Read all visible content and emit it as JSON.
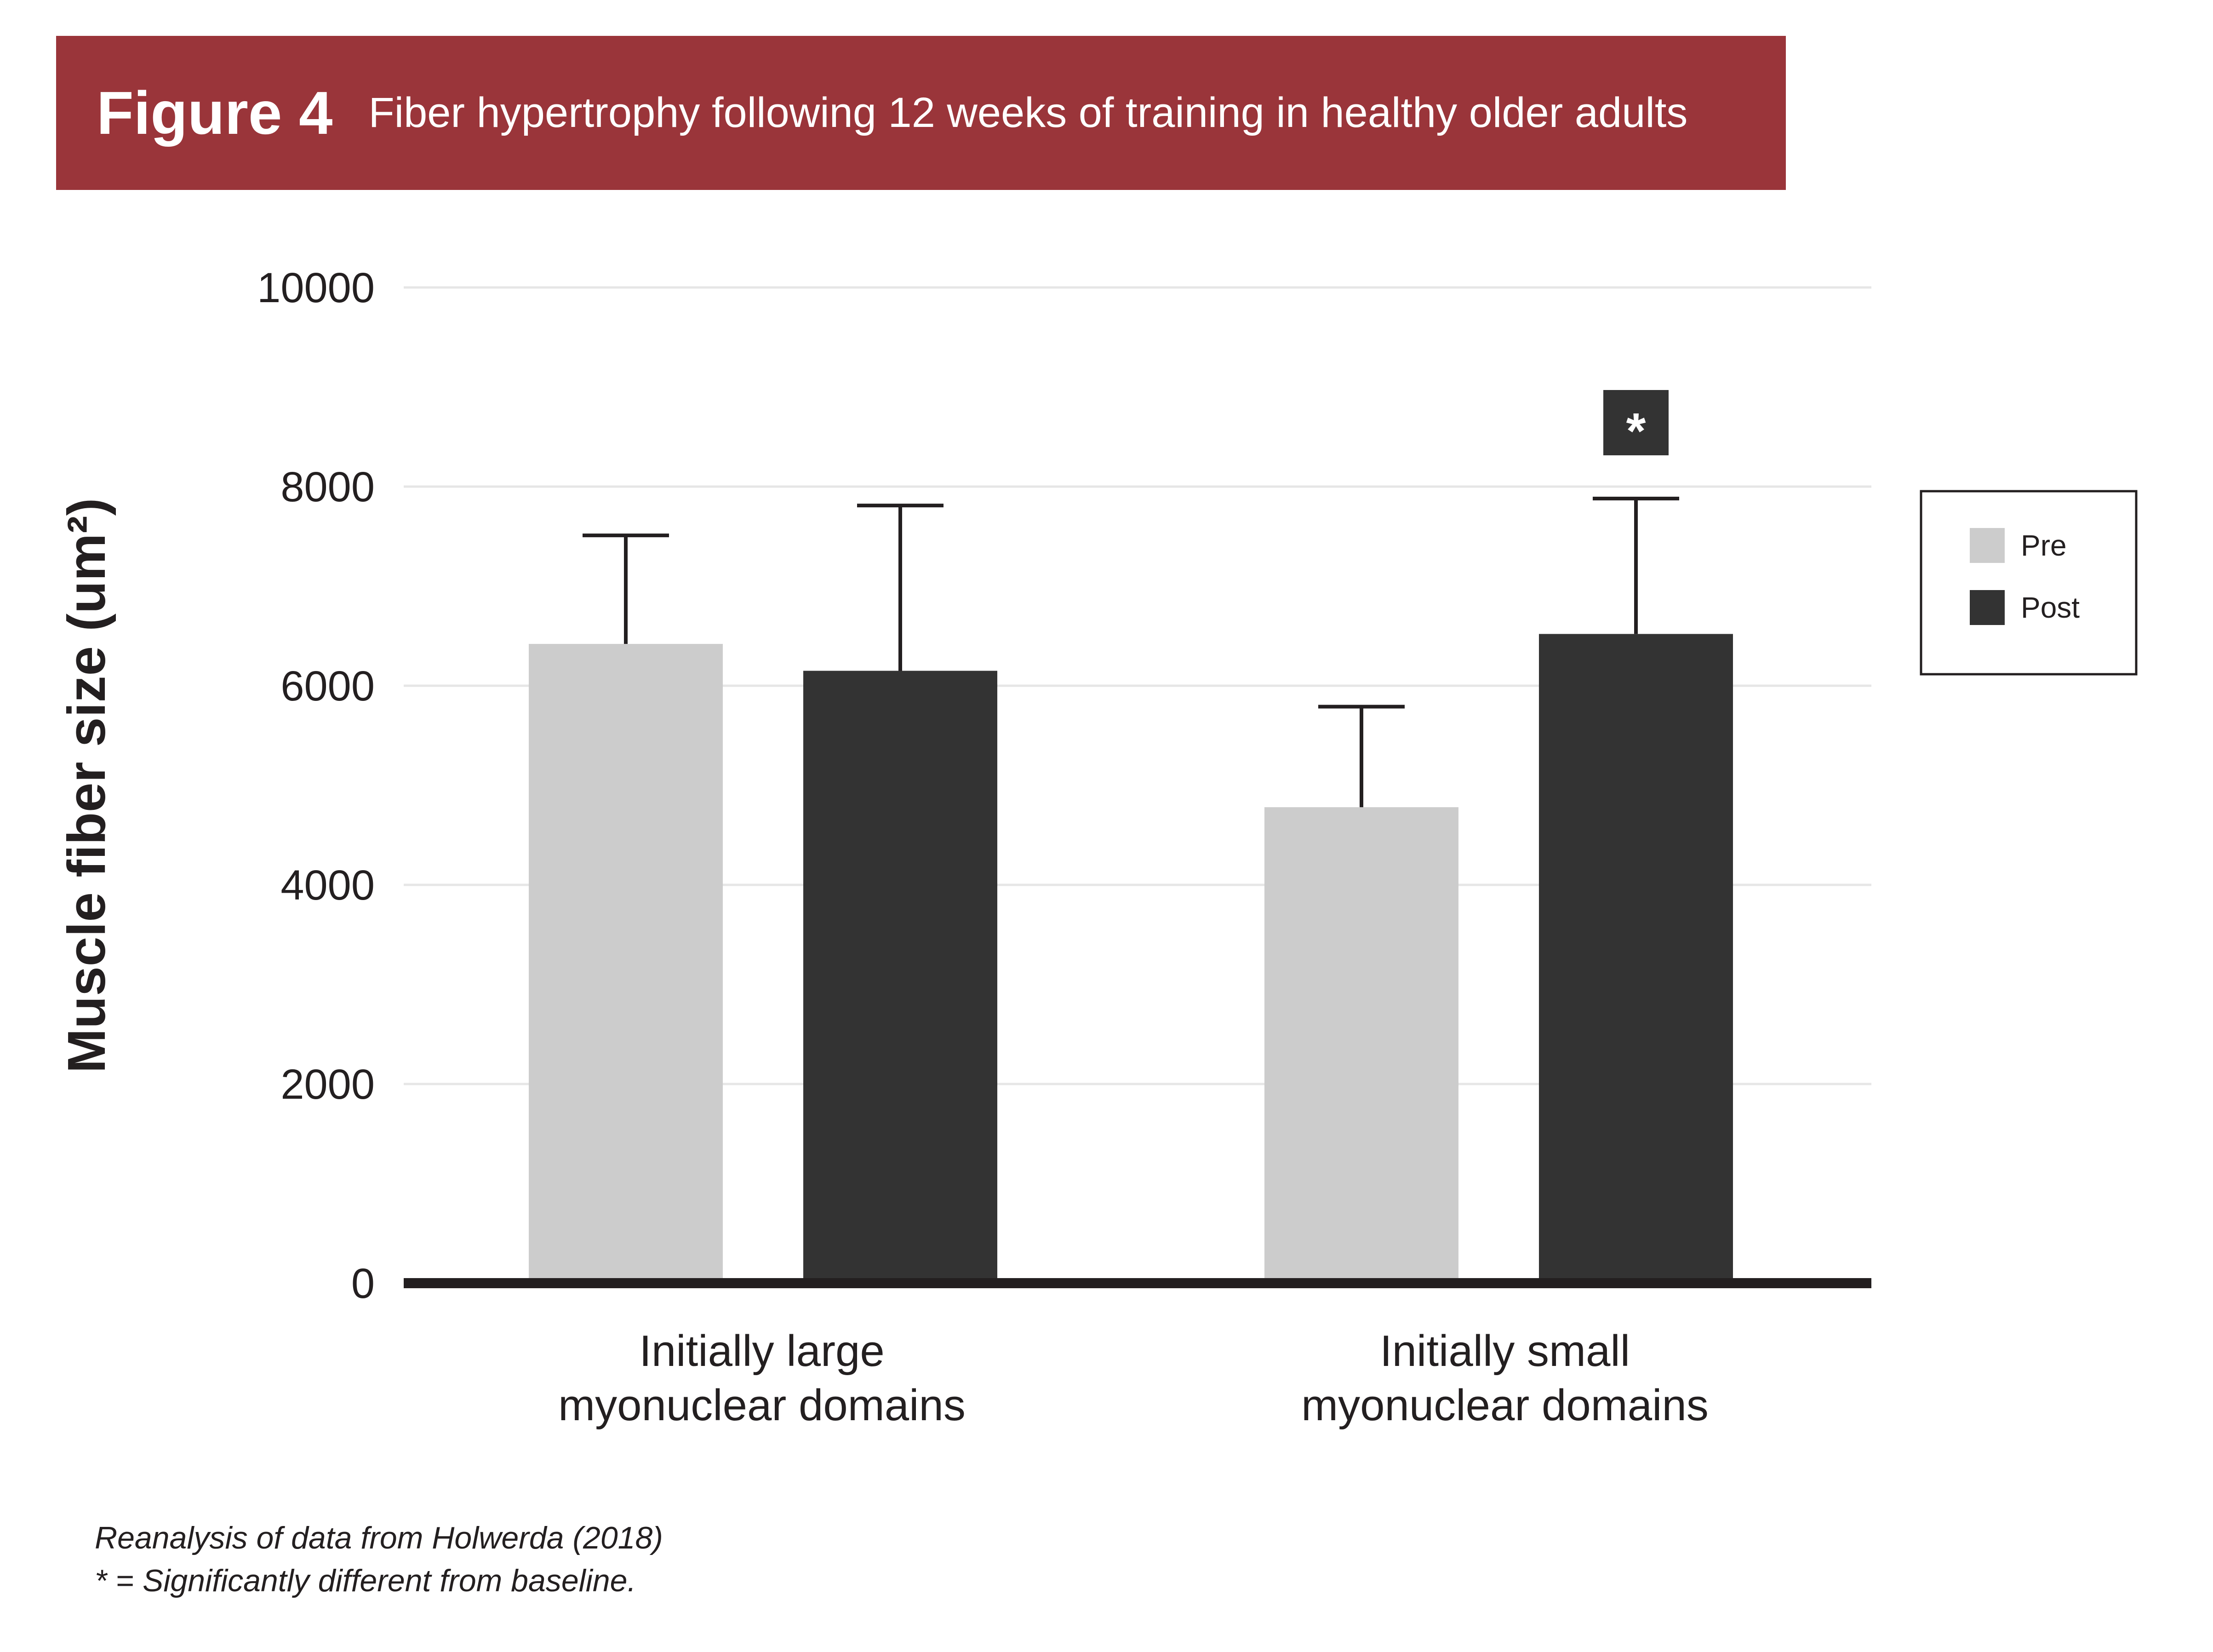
{
  "header": {
    "figure_label": "Figure 4",
    "title": "Fiber hypertrophy following 12 weeks of training in healthy older adults"
  },
  "chart_data": {
    "type": "bar",
    "title": "Fiber hypertrophy following 12 weeks of training in healthy older adults",
    "categories": [
      "Initially large\nmyonuclear domains",
      "Initially small\nmyonuclear domains"
    ],
    "series": [
      {
        "name": "Pre",
        "color": "#cccccc",
        "values": [
          6420,
          4780
        ],
        "error_upper": [
          7510,
          5790
        ]
      },
      {
        "name": "Post",
        "color": "#333333",
        "values": [
          6150,
          6520
        ],
        "error_upper": [
          7810,
          7880
        ]
      }
    ],
    "ylabel": "Muscle fiber size (um²)",
    "xlabel": "",
    "ylim": [
      0,
      10000
    ],
    "yticks": [
      0,
      2000,
      4000,
      6000,
      8000,
      10000
    ],
    "grid": true,
    "legend_position": "right",
    "annotations": [
      {
        "category_index": 1,
        "series_index": 1,
        "text": "*"
      }
    ]
  },
  "footnotes": {
    "source": "Reanalysis of data from Holwerda (2018)",
    "significance": "* = Significantly different from baseline."
  },
  "colors": {
    "banner": "#9a353a",
    "pre": "#cccccc",
    "post": "#333333",
    "axis": "#231f20",
    "grid": "#e6e6e6"
  }
}
